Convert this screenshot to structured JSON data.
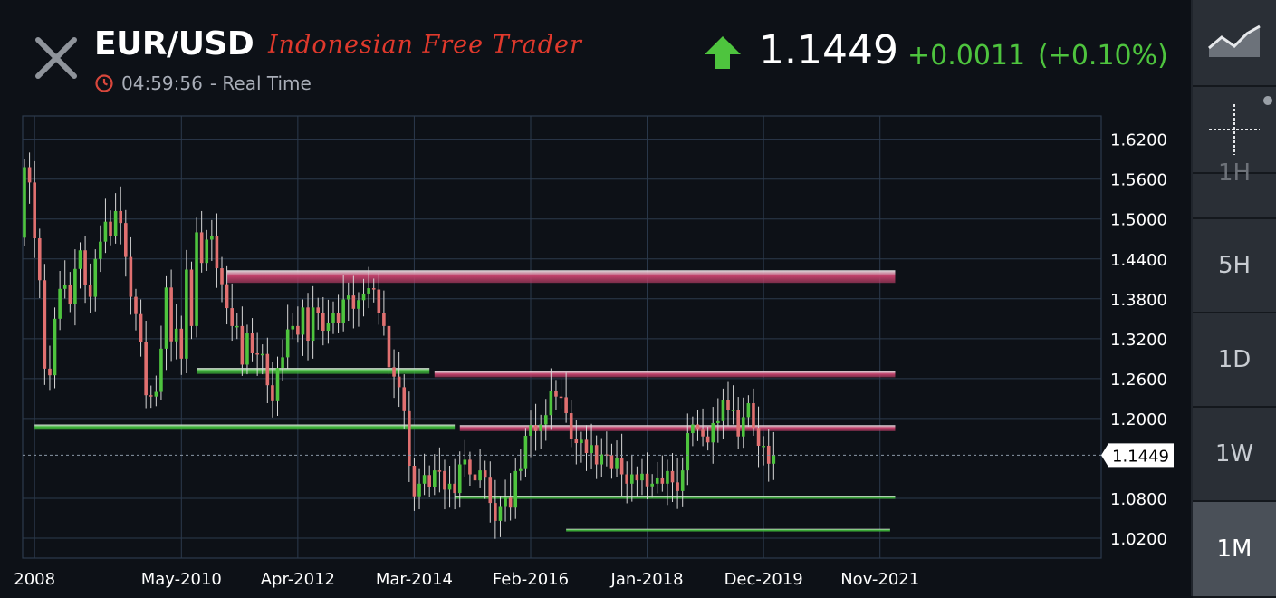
{
  "header": {
    "symbol": "EUR/USD",
    "brand": "Indonesian Free Trader",
    "time": "04:59:56",
    "time_suffix": "- Real Time",
    "price": "1.1449",
    "change": "+0.0011",
    "change_pct": "(+0.10%)"
  },
  "colors": {
    "background": "#0d1117",
    "up": "#4ec43e",
    "down": "#e07070",
    "grid": "#2c3a4d",
    "resistance": "#c0406a",
    "support": "#3fb83a",
    "brand": "#e0392c"
  },
  "sidebar": {
    "partial_label": "1H",
    "timeframes": [
      "5H",
      "1D",
      "1W",
      "1M"
    ],
    "active": "1M"
  },
  "chart_data": {
    "type": "candlestick",
    "timeframe": "1M",
    "y_ticks": [
      "1.6200",
      "1.5600",
      "1.5000",
      "1.4400",
      "1.3800",
      "1.3200",
      "1.2600",
      "1.2000",
      "1.1449",
      "1.0800",
      "1.0200"
    ],
    "ylim": [
      0.99,
      1.655
    ],
    "x_ticks": [
      "2008",
      "May-2010",
      "Apr-2012",
      "Mar-2014",
      "Feb-2016",
      "Jan-2018",
      "Dec-2019",
      "Nov-2021"
    ],
    "current_price": 1.1449,
    "resistance_zones": [
      {
        "from": "2011-03",
        "to": "2022-03",
        "low": 1.404,
        "high": 1.423
      },
      {
        "from": "2014-08",
        "to": "2022-03",
        "low": 1.262,
        "high": 1.271
      },
      {
        "from": "2015-01",
        "to": "2022-03",
        "low": 1.181,
        "high": 1.19
      }
    ],
    "support_zones": [
      {
        "from": "2008-01",
        "to": "2014-12",
        "low": 1.183,
        "high": 1.191
      },
      {
        "from": "2010-09",
        "to": "2014-07",
        "low": 1.267,
        "high": 1.276
      },
      {
        "from": "2014-12",
        "to": "2022-03",
        "low": 1.079,
        "high": 1.084
      },
      {
        "from": "2016-10",
        "to": "2022-02",
        "low": 1.031,
        "high": 1.034
      }
    ],
    "close": [
      1.578,
      1.555,
      1.471,
      1.408,
      1.275,
      1.265,
      1.35,
      1.395,
      1.401,
      1.372,
      1.425,
      1.453,
      1.401,
      1.383,
      1.44,
      1.466,
      1.496,
      1.475,
      1.512,
      1.494,
      1.443,
      1.383,
      1.357,
      1.315,
      1.235,
      1.233,
      1.24,
      1.305,
      1.397,
      1.316,
      1.335,
      1.29,
      1.424,
      1.339,
      1.48,
      1.434,
      1.469,
      1.474,
      1.426,
      1.402,
      1.366,
      1.339,
      1.339,
      1.281,
      1.329,
      1.298,
      1.296,
      1.297,
      1.25,
      1.226,
      1.276,
      1.292,
      1.334,
      1.339,
      1.326,
      1.367,
      1.317,
      1.367,
      1.358,
      1.332,
      1.344,
      1.359,
      1.343,
      1.379,
      1.385,
      1.365,
      1.378,
      1.388,
      1.396,
      1.394,
      1.358,
      1.339,
      1.277,
      1.263,
      1.247,
      1.211,
      1.129,
      1.083,
      1.102,
      1.115,
      1.097,
      1.122,
      1.121,
      1.093,
      1.102,
      1.088,
      1.131,
      1.138,
      1.116,
      1.107,
      1.122,
      1.111,
      1.073,
      1.046,
      1.067,
      1.081,
      1.066,
      1.121,
      1.124,
      1.174,
      1.19,
      1.181,
      1.191,
      1.205,
      1.241,
      1.233,
      1.232,
      1.208,
      1.169,
      1.163,
      1.168,
      1.148,
      1.16,
      1.131,
      1.146,
      1.145,
      1.124,
      1.14,
      1.116,
      1.102,
      1.116,
      1.107,
      1.117,
      1.098,
      1.102,
      1.11,
      1.102,
      1.121,
      1.104,
      1.091,
      1.122,
      1.178,
      1.191,
      1.183,
      1.173,
      1.164,
      1.193,
      1.196,
      1.228,
      1.213,
      1.213,
      1.173,
      1.202,
      1.223,
      1.186,
      1.159,
      1.159,
      1.132,
      1.145
    ],
    "open_start": 1.472
  }
}
